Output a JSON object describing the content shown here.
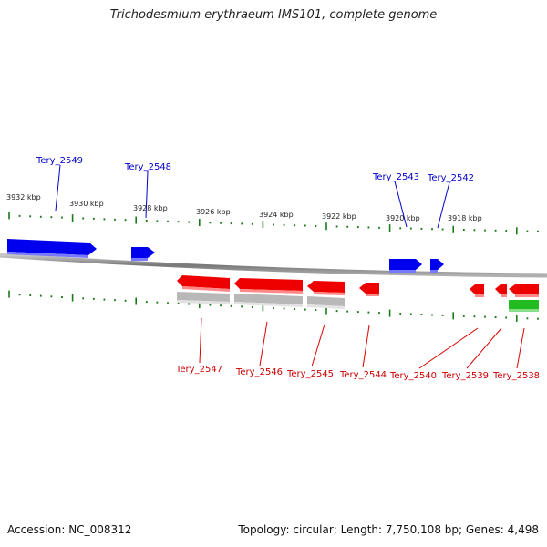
{
  "title": "Trichodesmium erythraeum IMS101, complete genome",
  "footer": {
    "accession": "Accession: NC_008312",
    "summary": "Topology: circular; Length: 7,750,108 bp; Genes: 4,498"
  },
  "colors": {
    "forward": "#0000ee",
    "reverse": "#ee0000",
    "pseudo": "#b0b0b0",
    "rna": "#22bb22",
    "ticks": "#1a7a1a",
    "backbone": "#888888"
  },
  "scale_labels": [
    "3932 kbp",
    "3930 kbp",
    "3928 kbp",
    "3926 kbp",
    "3924 kbp",
    "3922 kbp",
    "3920 kbp",
    "3918 kbp"
  ],
  "genes_top": [
    {
      "label": "Tery_2549"
    },
    {
      "label": "Tery_2548"
    },
    {
      "label": "Tery_2543"
    },
    {
      "label": "Tery_2542"
    }
  ],
  "genes_bottom": [
    {
      "label": "Tery_2547"
    },
    {
      "label": "Tery_2546"
    },
    {
      "label": "Tery_2545"
    },
    {
      "label": "Tery_2544"
    },
    {
      "label": "Tery_2540"
    },
    {
      "label": "Tery_2539"
    },
    {
      "label": "Tery_2538"
    }
  ]
}
